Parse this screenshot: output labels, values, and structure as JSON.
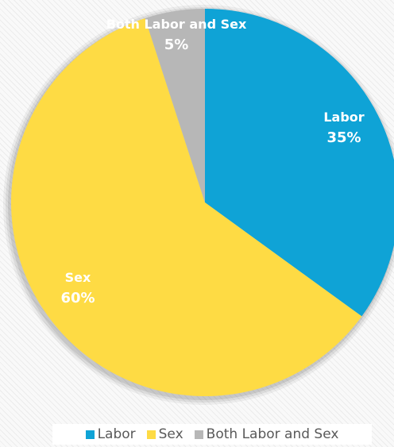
{
  "chart_data": {
    "type": "pie",
    "slices": [
      {
        "label": "Labor",
        "value": 35,
        "display": "35%",
        "color": "#0fa3d6"
      },
      {
        "label": "Sex",
        "value": 60,
        "display": "60%",
        "color": "#fedb44"
      },
      {
        "label": "Both Labor and Sex",
        "value": 5,
        "display": "5%",
        "color": "#b7b7b7"
      }
    ],
    "legend_position": "bottom",
    "start": "top, clockwise"
  },
  "legend": {
    "items": [
      {
        "label": "Labor",
        "color": "#0fa3d6"
      },
      {
        "label": "Sex",
        "color": "#fedb44"
      },
      {
        "label": "Both Labor and Sex",
        "color": "#b7b7b7"
      }
    ]
  }
}
